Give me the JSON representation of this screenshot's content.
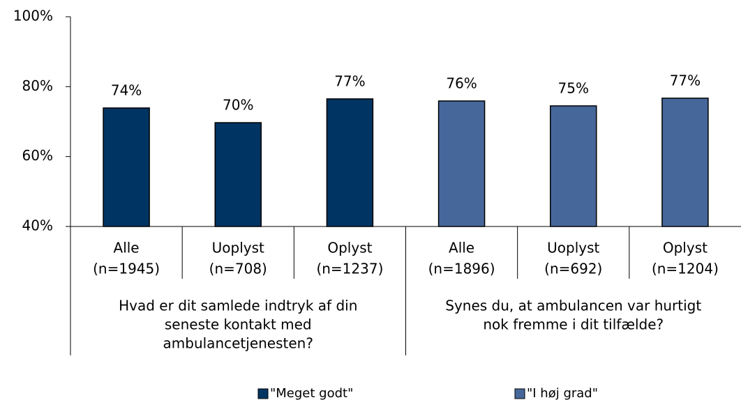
{
  "chart_data": {
    "type": "bar",
    "groups": [
      {
        "label": [
          "Hvad er dit samlede indtryk af din",
          "seneste kontakt med",
          "ambulancetjenesten?"
        ],
        "categories": [
          [
            "Alle",
            "(n=1945)"
          ],
          [
            "Uoplyst",
            "(n=708)"
          ],
          [
            "Oplyst",
            "(n=1237)"
          ]
        ]
      },
      {
        "label": [
          "Synes du, at ambulancen var hurtigt",
          "nok fremme i dit tilfælde?"
        ],
        "categories": [
          [
            "Alle",
            "(n=1896)"
          ],
          [
            "Uoplyst",
            "(n=692)"
          ],
          [
            "Oplyst",
            "(n=1204)"
          ]
        ]
      }
    ],
    "series": [
      {
        "name": "\"Meget godt\"",
        "color": "#003462",
        "values": [
          73.9,
          69.7,
          76.5,
          null,
          null,
          null
        ],
        "value_labels": [
          "74%",
          "70%",
          "77%",
          null,
          null,
          null
        ]
      },
      {
        "name": "\"I høj grad\"",
        "color": "#46679a",
        "values": [
          null,
          null,
          null,
          75.9,
          74.5,
          76.7
        ],
        "value_labels": [
          null,
          null,
          null,
          "76%",
          "75%",
          "77%"
        ]
      }
    ],
    "ylim": [
      40,
      100
    ],
    "yticks": [
      {
        "value": 40,
        "label": "40%"
      },
      {
        "value": 60,
        "label": "60%"
      },
      {
        "value": 80,
        "label": "80%"
      },
      {
        "value": 100,
        "label": "100%"
      }
    ],
    "legend": "bottom"
  }
}
